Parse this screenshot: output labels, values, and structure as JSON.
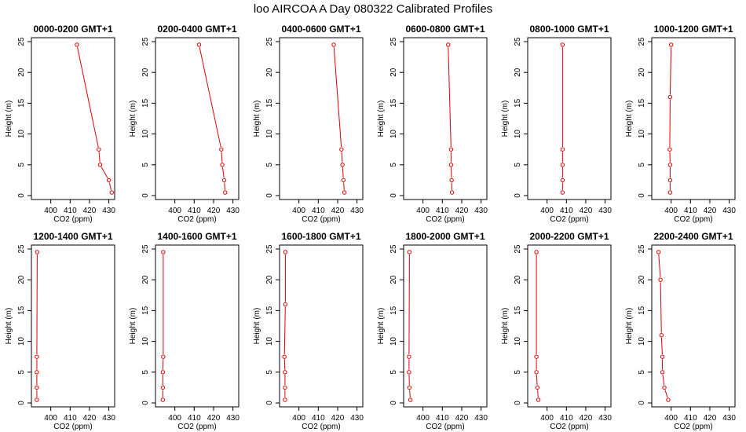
{
  "figure": {
    "title": "loo AIRCOA A  Day 080322  Calibrated Profiles"
  },
  "colors": {
    "series": "#dd0000",
    "axes": "#000000",
    "background": "#ffffff"
  },
  "chart_data": [
    {
      "type": "line",
      "title": "0000-0200 GMT+1",
      "xlabel": "CO2 (ppm)",
      "ylabel": "Height (m)",
      "xlim": [
        390,
        433
      ],
      "ylim": [
        0,
        25
      ],
      "xticks": [
        400,
        410,
        420,
        430
      ],
      "yticks": [
        0,
        5,
        10,
        15,
        20,
        25
      ],
      "grid": false,
      "series": [
        {
          "points": [
            [
              431.5,
              0.5
            ],
            [
              430.0,
              2.5
            ],
            [
              425.5,
              5.0
            ],
            [
              424.8,
              7.5
            ],
            [
              413.5,
              24.5
            ]
          ]
        }
      ]
    },
    {
      "type": "line",
      "title": "0200-0400 GMT+1",
      "xlabel": "CO2 (ppm)",
      "ylabel": "Height (m)",
      "xlim": [
        390,
        433
      ],
      "ylim": [
        0,
        25
      ],
      "xticks": [
        400,
        410,
        420,
        430
      ],
      "yticks": [
        0,
        5,
        10,
        15,
        20,
        25
      ],
      "grid": false,
      "series": [
        {
          "points": [
            [
              426.0,
              0.5
            ],
            [
              425.5,
              2.5
            ],
            [
              424.5,
              5.0
            ],
            [
              424.0,
              7.5
            ],
            [
              412.5,
              24.5
            ]
          ]
        }
      ]
    },
    {
      "type": "line",
      "title": "0400-0600 GMT+1",
      "xlabel": "CO2 (ppm)",
      "ylabel": "Height (m)",
      "xlim": [
        390,
        433
      ],
      "ylim": [
        0,
        25
      ],
      "xticks": [
        400,
        410,
        420,
        430
      ],
      "yticks": [
        0,
        5,
        10,
        15,
        20,
        25
      ],
      "grid": false,
      "series": [
        {
          "points": [
            [
              423.5,
              0.5
            ],
            [
              423.0,
              2.5
            ],
            [
              422.5,
              5.0
            ],
            [
              422.0,
              7.5
            ],
            [
              418.0,
              24.5
            ]
          ]
        }
      ]
    },
    {
      "type": "line",
      "title": "0600-0800 GMT+1",
      "xlabel": "CO2 (ppm)",
      "ylabel": "Height (m)",
      "xlim": [
        390,
        433
      ],
      "ylim": [
        0,
        25
      ],
      "xticks": [
        400,
        410,
        420,
        430
      ],
      "yticks": [
        0,
        5,
        10,
        15,
        20,
        25
      ],
      "grid": false,
      "series": [
        {
          "points": [
            [
              415.0,
              0.5
            ],
            [
              414.8,
              2.5
            ],
            [
              414.5,
              5.0
            ],
            [
              414.5,
              7.5
            ],
            [
              413.0,
              24.5
            ]
          ]
        }
      ]
    },
    {
      "type": "line",
      "title": "0800-1000 GMT+1",
      "xlabel": "CO2 (ppm)",
      "ylabel": "Height (m)",
      "xlim": [
        390,
        433
      ],
      "ylim": [
        0,
        25
      ],
      "xticks": [
        400,
        410,
        420,
        430
      ],
      "yticks": [
        0,
        5,
        10,
        15,
        20,
        25
      ],
      "grid": false,
      "series": [
        {
          "points": [
            [
              408.0,
              0.5
            ],
            [
              408.0,
              2.5
            ],
            [
              408.0,
              5.0
            ],
            [
              408.0,
              7.5
            ],
            [
              408.0,
              24.5
            ]
          ]
        }
      ]
    },
    {
      "type": "line",
      "title": "1000-1200 GMT+1",
      "xlabel": "CO2 (ppm)",
      "ylabel": "Height (m)",
      "xlim": [
        390,
        433
      ],
      "ylim": [
        0,
        25
      ],
      "xticks": [
        400,
        410,
        420,
        430
      ],
      "yticks": [
        0,
        5,
        10,
        15,
        20,
        25
      ],
      "grid": false,
      "series": [
        {
          "points": [
            [
              399.5,
              0.5
            ],
            [
              399.5,
              2.5
            ],
            [
              399.5,
              5.0
            ],
            [
              399.3,
              7.5
            ],
            [
              399.5,
              16.0
            ],
            [
              400.0,
              24.5
            ]
          ]
        }
      ]
    },
    {
      "type": "line",
      "title": "1200-1400 GMT+1",
      "xlabel": "CO2 (ppm)",
      "ylabel": "Height (m)",
      "xlim": [
        390,
        433
      ],
      "ylim": [
        0,
        25
      ],
      "xticks": [
        400,
        410,
        420,
        430
      ],
      "yticks": [
        0,
        5,
        10,
        15,
        20,
        25
      ],
      "grid": false,
      "series": [
        {
          "points": [
            [
              392.8,
              0.5
            ],
            [
              392.8,
              2.5
            ],
            [
              392.8,
              5.0
            ],
            [
              392.8,
              7.5
            ],
            [
              393.0,
              24.5
            ]
          ]
        }
      ]
    },
    {
      "type": "line",
      "title": "1400-1600 GMT+1",
      "xlabel": "CO2 (ppm)",
      "ylabel": "Height (m)",
      "xlim": [
        390,
        433
      ],
      "ylim": [
        0,
        25
      ],
      "xticks": [
        400,
        410,
        420,
        430
      ],
      "yticks": [
        0,
        5,
        10,
        15,
        20,
        25
      ],
      "grid": false,
      "series": [
        {
          "points": [
            [
              393.8,
              0.5
            ],
            [
              393.8,
              2.5
            ],
            [
              393.8,
              5.0
            ],
            [
              394.0,
              7.5
            ],
            [
              394.0,
              24.5
            ]
          ]
        }
      ]
    },
    {
      "type": "line",
      "title": "1600-1800 GMT+1",
      "xlabel": "CO2 (ppm)",
      "ylabel": "Height (m)",
      "xlim": [
        390,
        433
      ],
      "ylim": [
        0,
        25
      ],
      "xticks": [
        400,
        410,
        420,
        430
      ],
      "yticks": [
        0,
        5,
        10,
        15,
        20,
        25
      ],
      "grid": false,
      "series": [
        {
          "points": [
            [
              392.8,
              0.5
            ],
            [
              392.8,
              2.5
            ],
            [
              392.8,
              5.0
            ],
            [
              392.5,
              7.5
            ],
            [
              393.0,
              16.0
            ],
            [
              393.0,
              24.5
            ]
          ]
        }
      ]
    },
    {
      "type": "line",
      "title": "1800-2000 GMT+1",
      "xlabel": "CO2 (ppm)",
      "ylabel": "Height (m)",
      "xlim": [
        390,
        433
      ],
      "ylim": [
        0,
        25
      ],
      "xticks": [
        400,
        410,
        420,
        430
      ],
      "yticks": [
        0,
        5,
        10,
        15,
        20,
        25
      ],
      "grid": false,
      "series": [
        {
          "points": [
            [
              393.5,
              0.5
            ],
            [
              393.0,
              2.5
            ],
            [
              392.8,
              5.0
            ],
            [
              392.8,
              7.5
            ],
            [
              393.0,
              24.5
            ]
          ]
        }
      ]
    },
    {
      "type": "line",
      "title": "2000-2200 GMT+1",
      "xlabel": "CO2 (ppm)",
      "ylabel": "Height (m)",
      "xlim": [
        390,
        433
      ],
      "ylim": [
        0,
        25
      ],
      "xticks": [
        400,
        410,
        420,
        430
      ],
      "yticks": [
        0,
        5,
        10,
        15,
        20,
        25
      ],
      "grid": false,
      "series": [
        {
          "points": [
            [
              395.5,
              0.5
            ],
            [
              395.0,
              2.5
            ],
            [
              394.5,
              5.0
            ],
            [
              394.5,
              7.5
            ],
            [
              394.5,
              24.5
            ]
          ]
        }
      ]
    },
    {
      "type": "line",
      "title": "2200-2400 GMT+1",
      "xlabel": "CO2 (ppm)",
      "ylabel": "Height (m)",
      "xlim": [
        390,
        433
      ],
      "ylim": [
        0,
        25
      ],
      "xticks": [
        400,
        410,
        420,
        430
      ],
      "yticks": [
        0,
        5,
        10,
        15,
        20,
        25
      ],
      "grid": false,
      "series": [
        {
          "points": [
            [
              398.5,
              0.5
            ],
            [
              396.5,
              2.5
            ],
            [
              395.5,
              5.0
            ],
            [
              395.5,
              7.5
            ],
            [
              395.0,
              11.0
            ],
            [
              394.5,
              20.0
            ],
            [
              393.5,
              24.5
            ]
          ]
        }
      ]
    }
  ]
}
